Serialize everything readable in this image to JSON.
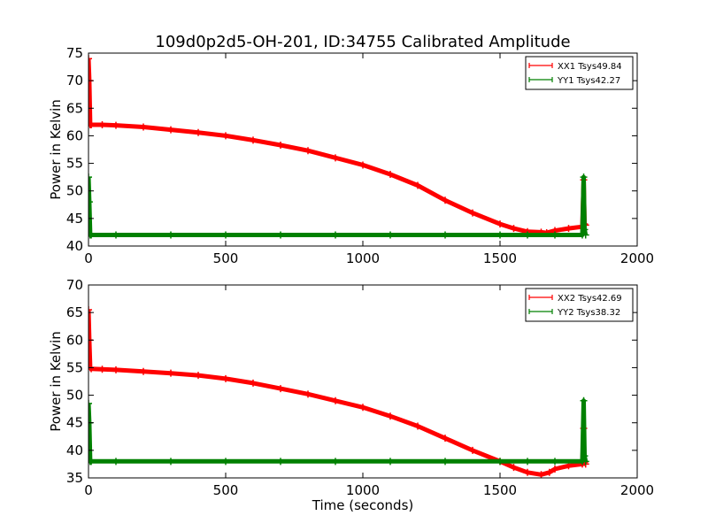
{
  "figure_title": "109d0p2d5-OH-201, ID:34755 Calibrated Amplitude",
  "chart_data": [
    {
      "type": "line",
      "title": "",
      "xlabel": "",
      "ylabel": "Power in Kelvin",
      "xlim": [
        0,
        2000
      ],
      "ylim": [
        40,
        75
      ],
      "xticks": [
        0,
        500,
        1000,
        1500,
        2000
      ],
      "yticks": [
        40,
        45,
        50,
        55,
        60,
        65,
        70,
        75
      ],
      "grid": false,
      "legend_position": "top-right",
      "series": [
        {
          "name": "XX1 Tsys49.84",
          "color": "#ff0000",
          "marker": "+",
          "x": [
            0,
            3,
            6,
            10,
            50,
            100,
            200,
            300,
            400,
            500,
            600,
            700,
            800,
            900,
            1000,
            1100,
            1200,
            1300,
            1400,
            1500,
            1550,
            1600,
            1650,
            1670,
            1700,
            1750,
            1800,
            1805,
            1808,
            1812
          ],
          "y": [
            74,
            70,
            62,
            62,
            62,
            61.9,
            61.6,
            61.1,
            60.6,
            60,
            59.2,
            58.3,
            57.3,
            56,
            54.7,
            53,
            51,
            48.3,
            46,
            44,
            43.2,
            42.6,
            42.5,
            42.4,
            42.8,
            43.2,
            43.5,
            52,
            44,
            43.8
          ]
        },
        {
          "name": "YY1 Tsys42.27",
          "color": "#008000",
          "marker": "+",
          "x": [
            0,
            3,
            6,
            10,
            100,
            300,
            500,
            700,
            900,
            1100,
            1300,
            1500,
            1600,
            1700,
            1800,
            1805,
            1808,
            1812
          ],
          "y": [
            52.5,
            48,
            42,
            42,
            42,
            42,
            42,
            42,
            42,
            42,
            42,
            42,
            42,
            42,
            42,
            52.5,
            43,
            42
          ]
        }
      ]
    },
    {
      "type": "line",
      "title": "",
      "xlabel": "Time (seconds)",
      "ylabel": "Power in Kelvin",
      "xlim": [
        0,
        2000
      ],
      "ylim": [
        35,
        70
      ],
      "xticks": [
        0,
        500,
        1000,
        1500,
        2000
      ],
      "yticks": [
        35,
        40,
        45,
        50,
        55,
        60,
        65,
        70
      ],
      "grid": false,
      "legend_position": "top-right",
      "series": [
        {
          "name": "XX2 Tsys42.69",
          "color": "#ff0000",
          "marker": "+",
          "x": [
            0,
            3,
            6,
            10,
            50,
            100,
            200,
            300,
            400,
            500,
            600,
            700,
            800,
            900,
            1000,
            1100,
            1200,
            1300,
            1400,
            1500,
            1550,
            1600,
            1650,
            1680,
            1700,
            1750,
            1800,
            1805,
            1808,
            1812
          ],
          "y": [
            65.5,
            60,
            55,
            54.8,
            54.7,
            54.6,
            54.3,
            54,
            53.6,
            53,
            52.2,
            51.2,
            50.2,
            49,
            47.8,
            46.2,
            44.4,
            42.2,
            40,
            38,
            36.9,
            36,
            35.6,
            36,
            36.6,
            37.2,
            37.5,
            44,
            37.8,
            37.5
          ]
        },
        {
          "name": "YY2 Tsys38.32",
          "color": "#008000",
          "marker": "+",
          "x": [
            0,
            3,
            6,
            10,
            100,
            300,
            500,
            700,
            900,
            1100,
            1300,
            1500,
            1600,
            1700,
            1800,
            1805,
            1808,
            1812
          ],
          "y": [
            48.5,
            45,
            38,
            38,
            38,
            38,
            38,
            38,
            38,
            38,
            38,
            38,
            38,
            38,
            38,
            49,
            39,
            38
          ]
        }
      ]
    }
  ]
}
